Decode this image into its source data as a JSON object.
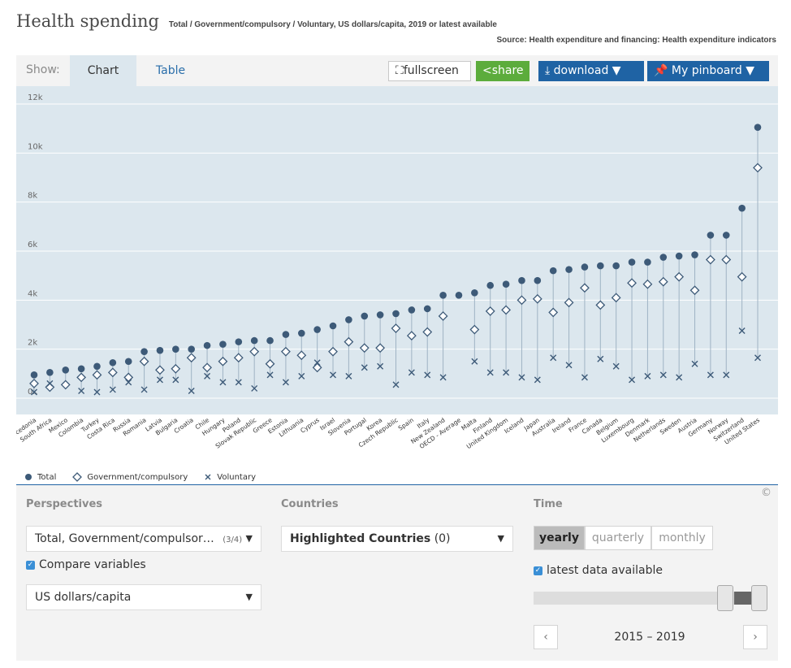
{
  "header": {
    "title": "Health spending",
    "subtitle": "Total / Government/compulsory / Voluntary, US dollars/capita, 2019 or latest available",
    "source": "Source: Health expenditure and financing: Health expenditure indicators"
  },
  "toolbar": {
    "show_label": "Show:",
    "tabs": [
      "Chart",
      "Table"
    ],
    "fullscreen_label": "fullscreen",
    "share_label": "share",
    "download_label": "download ▼",
    "pinboard_label": "My pinboard ▼"
  },
  "legend": [
    "Total",
    "Government/compulsory",
    "Voluntary"
  ],
  "colors": {
    "accent": "#1f63a4",
    "marker": "#3d5a78",
    "plot_bg": "#dce7ee",
    "share": "#5cac3c"
  },
  "chart_data": {
    "type": "scatter",
    "ylim": [
      0,
      12000
    ],
    "yticks": [
      "0k",
      "2k",
      "4k",
      "6k",
      "8k",
      "10k",
      "12k"
    ],
    "categories": [
      "North Macedonia",
      "South Africa",
      "Mexico",
      "Colombia",
      "Turkey",
      "Costa Rica",
      "Russia",
      "Romania",
      "Latvia",
      "Bulgaria",
      "Croatia",
      "Chile",
      "Hungary",
      "Poland",
      "Slovak Republic",
      "Greece",
      "Estonia",
      "Lithuania",
      "Cyprus",
      "Israel",
      "Slovenia",
      "Portugal",
      "Korea",
      "Czech Republic",
      "Spain",
      "Italy",
      "New Zealand",
      "OECD - Average",
      "Malta",
      "Finland",
      "United Kingdom",
      "Iceland",
      "Japan",
      "Australia",
      "Ireland",
      "France",
      "Canada",
      "Belgium",
      "Luxembourg",
      "Denmark",
      "Netherlands",
      "Sweden",
      "Austria",
      "Germany",
      "Norway",
      "Switzerland",
      "United States"
    ],
    "series": [
      {
        "name": "Total",
        "values": [
          950,
          1050,
          1150,
          1200,
          1300,
          1450,
          1500,
          1900,
          1950,
          2000,
          2000,
          2150,
          2200,
          2300,
          2350,
          2350,
          2600,
          2650,
          2800,
          2950,
          3200,
          3350,
          3400,
          3450,
          3600,
          3650,
          4200,
          4200,
          4300,
          4600,
          4650,
          4800,
          4800,
          5200,
          5250,
          5350,
          5400,
          5400,
          5550,
          5550,
          5750,
          5800,
          5850,
          6650,
          6650,
          7750,
          11050
        ]
      },
      {
        "name": "Government/compulsory",
        "values": [
          600,
          450,
          550,
          850,
          950,
          1050,
          850,
          1500,
          1150,
          1200,
          1650,
          1250,
          1500,
          1650,
          1900,
          1400,
          1900,
          1750,
          1250,
          1900,
          2300,
          2050,
          2050,
          2850,
          2550,
          2700,
          3350,
          null,
          2800,
          3550,
          3600,
          4000,
          4050,
          3500,
          3900,
          4500,
          3800,
          4100,
          4700,
          4650,
          4750,
          4950,
          4400,
          5650,
          5650,
          4950,
          9400
        ]
      },
      {
        "name": "Voluntary",
        "values": [
          250,
          600,
          null,
          300,
          250,
          350,
          650,
          350,
          750,
          750,
          300,
          900,
          650,
          650,
          400,
          950,
          650,
          900,
          1450,
          950,
          900,
          1250,
          1300,
          550,
          1050,
          950,
          850,
          null,
          1500,
          1050,
          1050,
          850,
          750,
          1650,
          1350,
          850,
          1600,
          1300,
          750,
          900,
          950,
          850,
          1400,
          950,
          950,
          2750,
          1650
        ]
      }
    ]
  },
  "controls": {
    "perspectives_title": "Perspectives",
    "perspective_value": "Total, Government/compulsor…",
    "perspective_count": "(3/4)",
    "compare_label": "Compare variables",
    "unit_value": "US dollars/capita",
    "countries_title": "Countries",
    "countries_value": "Highlighted Countries",
    "countries_count": "(0)",
    "time_title": "Time",
    "time_options": [
      "yearly",
      "quarterly",
      "monthly"
    ],
    "latest_label": "latest data available",
    "range_label": "2015 – 2019",
    "copyright": "©"
  }
}
